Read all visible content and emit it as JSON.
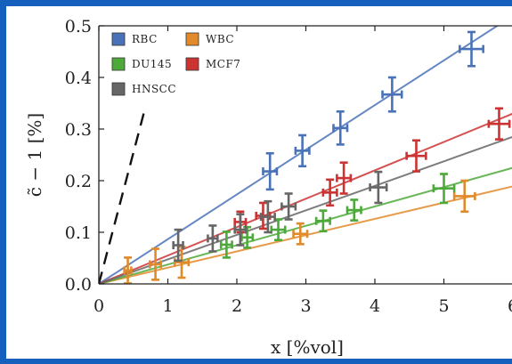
{
  "chart_data": {
    "type": "scatter",
    "xlabel": "x [%vol]",
    "ylabel": "c̃ − 1 [%]",
    "xlim": [
      0,
      6
    ],
    "ylim": [
      0,
      0.5
    ],
    "x_ticks": [
      "0",
      "1",
      "2",
      "3",
      "4",
      "5",
      "6"
    ],
    "y_ticks": [
      "0.0",
      "0.1",
      "0.2",
      "0.3",
      "0.4",
      "0.5"
    ],
    "grid": false,
    "legend_position": "top-left",
    "series": [
      {
        "name": "RBC",
        "color": "#4a72b8",
        "fit_slope": 0.0866,
        "points": [
          {
            "x": 2.48,
            "y": 0.218,
            "xerr": 0.1,
            "yerr": 0.035
          },
          {
            "x": 2.95,
            "y": 0.258,
            "xerr": 0.1,
            "yerr": 0.03
          },
          {
            "x": 3.5,
            "y": 0.302,
            "xerr": 0.1,
            "yerr": 0.032
          },
          {
            "x": 4.25,
            "y": 0.367,
            "xerr": 0.14,
            "yerr": 0.033
          },
          {
            "x": 5.4,
            "y": 0.455,
            "xerr": 0.17,
            "yerr": 0.033
          }
        ]
      },
      {
        "name": "WBC",
        "color": "#e08a2a",
        "fit_slope": 0.0315,
        "points": [
          {
            "x": 0.42,
            "y": 0.026,
            "xerr": 0.05,
            "yerr": 0.025
          },
          {
            "x": 0.82,
            "y": 0.038,
            "xerr": 0.08,
            "yerr": 0.03
          },
          {
            "x": 1.2,
            "y": 0.042,
            "xerr": 0.1,
            "yerr": 0.03
          },
          {
            "x": 2.92,
            "y": 0.097,
            "xerr": 0.1,
            "yerr": 0.02
          },
          {
            "x": 5.3,
            "y": 0.17,
            "xerr": 0.15,
            "yerr": 0.03
          }
        ]
      },
      {
        "name": "DU145",
        "color": "#4daa3a",
        "fit_slope": 0.0375,
        "points": [
          {
            "x": 1.85,
            "y": 0.076,
            "xerr": 0.08,
            "yerr": 0.025
          },
          {
            "x": 2.15,
            "y": 0.09,
            "xerr": 0.08,
            "yerr": 0.02
          },
          {
            "x": 2.6,
            "y": 0.105,
            "xerr": 0.1,
            "yerr": 0.02
          },
          {
            "x": 3.25,
            "y": 0.122,
            "xerr": 0.1,
            "yerr": 0.02
          },
          {
            "x": 3.7,
            "y": 0.143,
            "xerr": 0.1,
            "yerr": 0.02
          },
          {
            "x": 5.0,
            "y": 0.185,
            "xerr": 0.15,
            "yerr": 0.028
          }
        ]
      },
      {
        "name": "MCF7",
        "color": "#cc3333",
        "fit_slope": 0.055,
        "points": [
          {
            "x": 2.05,
            "y": 0.12,
            "xerr": 0.08,
            "yerr": 0.02
          },
          {
            "x": 2.38,
            "y": 0.132,
            "xerr": 0.1,
            "yerr": 0.025
          },
          {
            "x": 3.35,
            "y": 0.177,
            "xerr": 0.1,
            "yerr": 0.025
          },
          {
            "x": 3.55,
            "y": 0.205,
            "xerr": 0.1,
            "yerr": 0.03
          },
          {
            "x": 4.6,
            "y": 0.248,
            "xerr": 0.14,
            "yerr": 0.03
          },
          {
            "x": 5.8,
            "y": 0.31,
            "xerr": 0.15,
            "yerr": 0.03
          }
        ]
      },
      {
        "name": "HNSCC",
        "color": "#666666",
        "fit_slope": 0.0475,
        "points": [
          {
            "x": 1.15,
            "y": 0.075,
            "xerr": 0.07,
            "yerr": 0.03
          },
          {
            "x": 1.65,
            "y": 0.088,
            "xerr": 0.07,
            "yerr": 0.025
          },
          {
            "x": 2.05,
            "y": 0.105,
            "xerr": 0.08,
            "yerr": 0.03
          },
          {
            "x": 2.45,
            "y": 0.13,
            "xerr": 0.1,
            "yerr": 0.03
          },
          {
            "x": 2.75,
            "y": 0.15,
            "xerr": 0.1,
            "yerr": 0.025
          },
          {
            "x": 4.05,
            "y": 0.187,
            "xerr": 0.12,
            "yerr": 0.03
          }
        ]
      }
    ],
    "dashed_reference_line": {
      "x": [
        0.0,
        0.65
      ],
      "y": [
        0.0,
        0.33
      ],
      "color": "#111111"
    }
  }
}
